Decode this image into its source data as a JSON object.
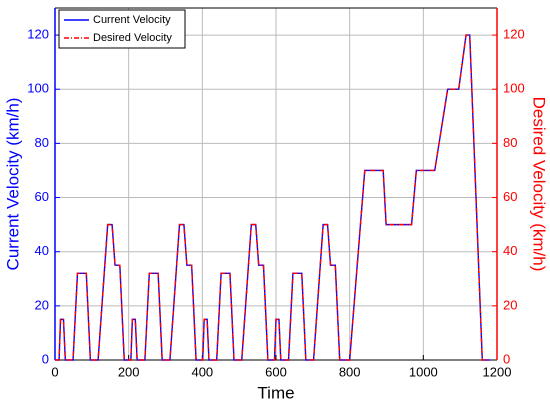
{
  "chart_data": {
    "type": "line",
    "xlabel": "Time",
    "ylabel": "Current Velocity (km/h)",
    "y2label": "Desired Velocity (km/h)",
    "x": [
      0,
      11,
      15,
      23,
      28,
      49,
      61,
      85,
      96,
      117,
      143,
      155,
      163,
      176,
      188,
      195,
      206,
      210,
      218,
      223,
      244,
      256,
      280,
      291,
      312,
      338,
      350,
      358,
      371,
      383,
      390,
      401,
      405,
      413,
      418,
      439,
      451,
      475,
      486,
      507,
      533,
      545,
      553,
      566,
      578,
      585,
      596,
      600,
      608,
      613,
      634,
      646,
      670,
      681,
      702,
      728,
      740,
      748,
      761,
      773,
      780,
      800,
      841,
      891,
      899,
      968,
      981,
      1031,
      1066,
      1096,
      1116,
      1126,
      1160,
      1180
    ],
    "series": [
      {
        "name": "Current Velocity",
        "color": "#0000ff",
        "dash": false,
        "values": [
          0,
          0,
          15,
          15,
          0,
          0,
          32,
          32,
          0,
          0,
          50,
          50,
          35,
          35,
          0,
          0,
          0,
          15,
          15,
          0,
          0,
          32,
          32,
          0,
          0,
          50,
          50,
          35,
          35,
          0,
          0,
          0,
          15,
          15,
          0,
          0,
          32,
          32,
          0,
          0,
          50,
          50,
          35,
          35,
          0,
          0,
          0,
          15,
          15,
          0,
          0,
          32,
          32,
          0,
          0,
          50,
          50,
          35,
          35,
          0,
          0,
          0,
          70,
          70,
          50,
          50,
          70,
          70,
          100,
          100,
          120,
          120,
          0,
          0
        ]
      },
      {
        "name": "Desired Velocity",
        "color": "#ff0000",
        "dash": true,
        "axis": "y2",
        "values": [
          0,
          0,
          15,
          15,
          0,
          0,
          32,
          32,
          0,
          0,
          50,
          50,
          35,
          35,
          0,
          0,
          0,
          15,
          15,
          0,
          0,
          32,
          32,
          0,
          0,
          50,
          50,
          35,
          35,
          0,
          0,
          0,
          15,
          15,
          0,
          0,
          32,
          32,
          0,
          0,
          50,
          50,
          35,
          35,
          0,
          0,
          0,
          15,
          15,
          0,
          0,
          32,
          32,
          0,
          0,
          50,
          50,
          35,
          35,
          0,
          0,
          0,
          70,
          70,
          50,
          50,
          70,
          70,
          100,
          100,
          120,
          120,
          0,
          0
        ]
      }
    ],
    "xlim": [
      0,
      1200
    ],
    "xticks": [
      0,
      200,
      400,
      600,
      800,
      1000,
      1200
    ],
    "ylim": [
      0,
      130
    ],
    "yticks": [
      0,
      20,
      40,
      60,
      80,
      100,
      120
    ],
    "y2lim": [
      0,
      130
    ],
    "y2ticks": [
      0,
      20,
      40,
      60,
      80,
      100,
      120
    ],
    "grid": true,
    "legend": "upper left"
  }
}
